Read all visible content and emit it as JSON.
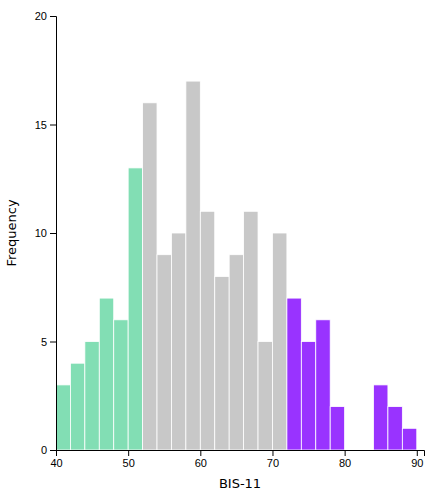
{
  "chart_data": {
    "type": "histogram",
    "x": [
      40,
      42,
      44,
      46,
      48,
      50,
      52,
      54,
      56,
      58,
      60,
      62,
      64,
      66,
      68,
      70,
      72,
      74,
      76,
      78,
      84,
      86,
      88
    ],
    "bin_width": 2,
    "values": [
      3,
      4,
      5,
      7,
      6,
      13,
      16,
      9,
      10,
      17,
      11,
      8,
      9,
      11,
      5,
      10,
      7,
      5,
      6,
      2,
      3,
      2,
      1
    ],
    "colors": [
      "#82DEB4",
      "#82DEB4",
      "#82DEB4",
      "#82DEB4",
      "#82DEB4",
      "#82DEB4",
      "#C8C8C8",
      "#C8C8C8",
      "#C8C8C8",
      "#C8C8C8",
      "#C8C8C8",
      "#C8C8C8",
      "#C8C8C8",
      "#C8C8C8",
      "#C8C8C8",
      "#C8C8C8",
      "#9933FF",
      "#9933FF",
      "#9933FF",
      "#9933FF",
      "#9933FF",
      "#9933FF",
      "#9933FF"
    ],
    "xlabel": "BIS-11",
    "ylabel": "Frequency",
    "xlim": [
      40,
      91
    ],
    "xticks": [
      40,
      50,
      60,
      70,
      80,
      90
    ],
    "ylim": [
      0,
      20
    ],
    "yticks": [
      0,
      5,
      10,
      15,
      20
    ],
    "grid": false
  }
}
